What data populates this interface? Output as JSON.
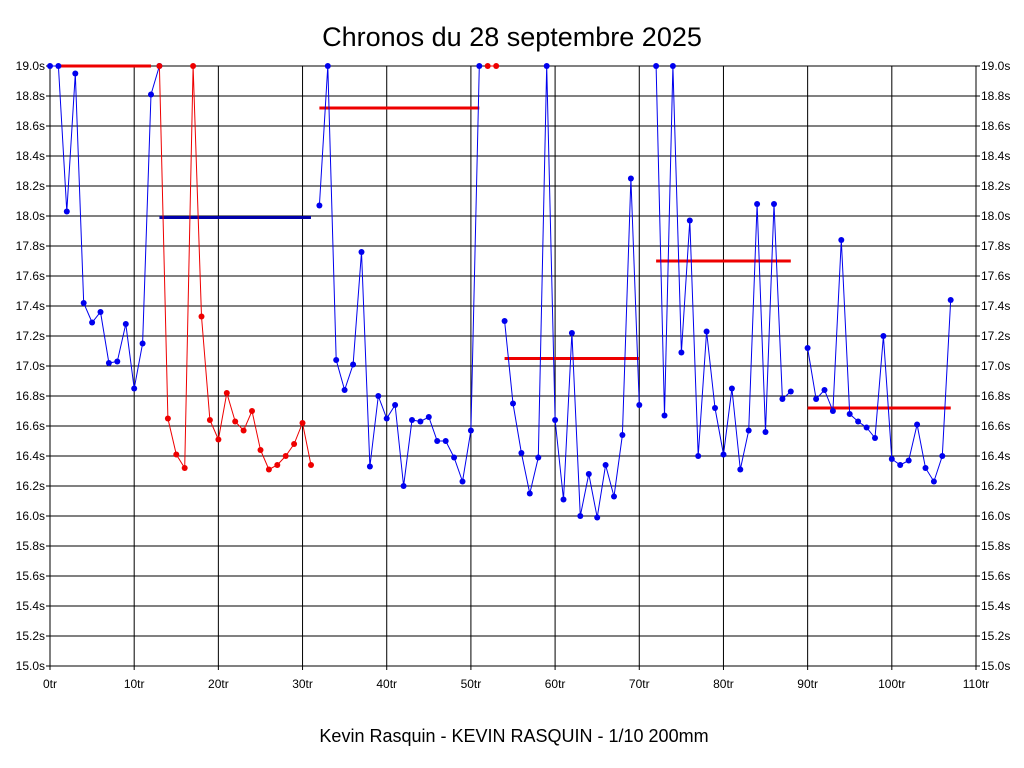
{
  "chart_data": {
    "type": "line",
    "title": "Chronos du 28 septembre 2025",
    "subtitle": "Kevin Rasquin - KEVIN RASQUIN - 1/10 200mm",
    "x_ticks": [
      "0tr",
      "10tr",
      "20tr",
      "30tr",
      "40tr",
      "50tr",
      "60tr",
      "70tr",
      "80tr",
      "90tr",
      "100tr",
      "110tr"
    ],
    "y_ticks": [
      "15.0s",
      "15.2s",
      "15.4s",
      "15.6s",
      "15.8s",
      "16.0s",
      "16.2s",
      "16.4s",
      "16.6s",
      "16.8s",
      "17.0s",
      "17.2s",
      "17.4s",
      "17.6s",
      "17.8s",
      "18.0s",
      "18.2s",
      "18.4s",
      "18.6s",
      "18.8s",
      "19.0s"
    ],
    "xlim": [
      0,
      110
    ],
    "ylim": [
      15.0,
      19.0
    ],
    "grid": true,
    "series": [
      {
        "color": "#0000ee",
        "points": [
          [
            0,
            19.0
          ],
          [
            1,
            19.0
          ],
          [
            2,
            18.03
          ],
          [
            3,
            18.95
          ],
          [
            4,
            17.42
          ],
          [
            5,
            17.29
          ],
          [
            6,
            17.36
          ],
          [
            7,
            17.02
          ],
          [
            8,
            17.03
          ],
          [
            9,
            17.28
          ],
          [
            10,
            16.85
          ],
          [
            11,
            17.15
          ],
          [
            12,
            18.81
          ],
          [
            13,
            19.0
          ]
        ]
      },
      {
        "color": "#ee0000",
        "points": [
          [
            13,
            19.0
          ],
          [
            14,
            16.65
          ],
          [
            15,
            16.41
          ],
          [
            16,
            16.32
          ],
          [
            17,
            19.0
          ],
          [
            18,
            17.33
          ],
          [
            19,
            16.64
          ],
          [
            20,
            16.51
          ],
          [
            21,
            16.82
          ],
          [
            22,
            16.63
          ],
          [
            23,
            16.57
          ],
          [
            24,
            16.7
          ],
          [
            25,
            16.44
          ],
          [
            26,
            16.31
          ],
          [
            27,
            16.34
          ],
          [
            28,
            16.4
          ],
          [
            29,
            16.48
          ],
          [
            30,
            16.62
          ],
          [
            31,
            16.34
          ]
        ]
      },
      {
        "color": "#0000ee",
        "points": [
          [
            32,
            18.07
          ],
          [
            33,
            19.0
          ],
          [
            34,
            17.04
          ],
          [
            35,
            16.84
          ],
          [
            36,
            17.01
          ],
          [
            37,
            17.76
          ],
          [
            38,
            16.33
          ],
          [
            39,
            16.8
          ],
          [
            40,
            16.65
          ],
          [
            41,
            16.74
          ],
          [
            42,
            16.2
          ],
          [
            43,
            16.64
          ],
          [
            44,
            16.63
          ],
          [
            45,
            16.66
          ],
          [
            46,
            16.5
          ],
          [
            47,
            16.5
          ],
          [
            48,
            16.39
          ],
          [
            49,
            16.23
          ],
          [
            50,
            16.57
          ],
          [
            51,
            19.0
          ]
        ]
      },
      {
        "color": "#ee0000",
        "points": [
          [
            52,
            19.0
          ],
          [
            53,
            19.0
          ]
        ]
      },
      {
        "color": "#0000ee",
        "points": [
          [
            54,
            17.3
          ],
          [
            55,
            16.75
          ],
          [
            56,
            16.42
          ],
          [
            57,
            16.15
          ],
          [
            58,
            16.39
          ],
          [
            59,
            19.0
          ],
          [
            60,
            16.64
          ],
          [
            61,
            16.11
          ],
          [
            62,
            17.22
          ],
          [
            63,
            16.0
          ],
          [
            64,
            16.28
          ],
          [
            65,
            15.99
          ],
          [
            66,
            16.34
          ],
          [
            67,
            16.13
          ],
          [
            68,
            16.54
          ],
          [
            69,
            18.25
          ],
          [
            70,
            16.74
          ]
        ]
      },
      {
        "color": "#0000ee",
        "points": [
          [
            72,
            19.0
          ],
          [
            73,
            16.67
          ],
          [
            74,
            19.0
          ],
          [
            75,
            17.09
          ],
          [
            76,
            17.97
          ],
          [
            77,
            16.4
          ],
          [
            78,
            17.23
          ],
          [
            79,
            16.72
          ],
          [
            80,
            16.41
          ],
          [
            81,
            16.85
          ],
          [
            82,
            16.31
          ],
          [
            83,
            16.57
          ],
          [
            84,
            18.08
          ],
          [
            85,
            16.56
          ],
          [
            86,
            18.08
          ],
          [
            87,
            16.78
          ],
          [
            88,
            16.83
          ]
        ]
      },
      {
        "color": "#0000ee",
        "points": [
          [
            90,
            17.12
          ],
          [
            91,
            16.78
          ],
          [
            92,
            16.84
          ],
          [
            93,
            16.7
          ],
          [
            94,
            17.84
          ],
          [
            95,
            16.68
          ],
          [
            96,
            16.63
          ],
          [
            97,
            16.59
          ],
          [
            98,
            16.52
          ],
          [
            99,
            17.2
          ],
          [
            100,
            16.38
          ],
          [
            101,
            16.34
          ],
          [
            102,
            16.37
          ],
          [
            103,
            16.61
          ],
          [
            104,
            16.32
          ],
          [
            105,
            16.23
          ],
          [
            106,
            16.4
          ],
          [
            107,
            17.44
          ]
        ]
      }
    ],
    "averages": [
      {
        "x_start": 1,
        "x_end": 12,
        "y": 19.0,
        "color": "#ee0000"
      },
      {
        "x_start": 13,
        "x_end": 31,
        "y": 17.99,
        "color": "#0000aa"
      },
      {
        "x_start": 32,
        "x_end": 51,
        "y": 18.72,
        "color": "#ee0000"
      },
      {
        "x_start": 54,
        "x_end": 70,
        "y": 17.05,
        "color": "#ee0000"
      },
      {
        "x_start": 72,
        "x_end": 88,
        "y": 17.7,
        "color": "#ee0000"
      },
      {
        "x_start": 90,
        "x_end": 107,
        "y": 16.72,
        "color": "#ee0000"
      }
    ]
  }
}
